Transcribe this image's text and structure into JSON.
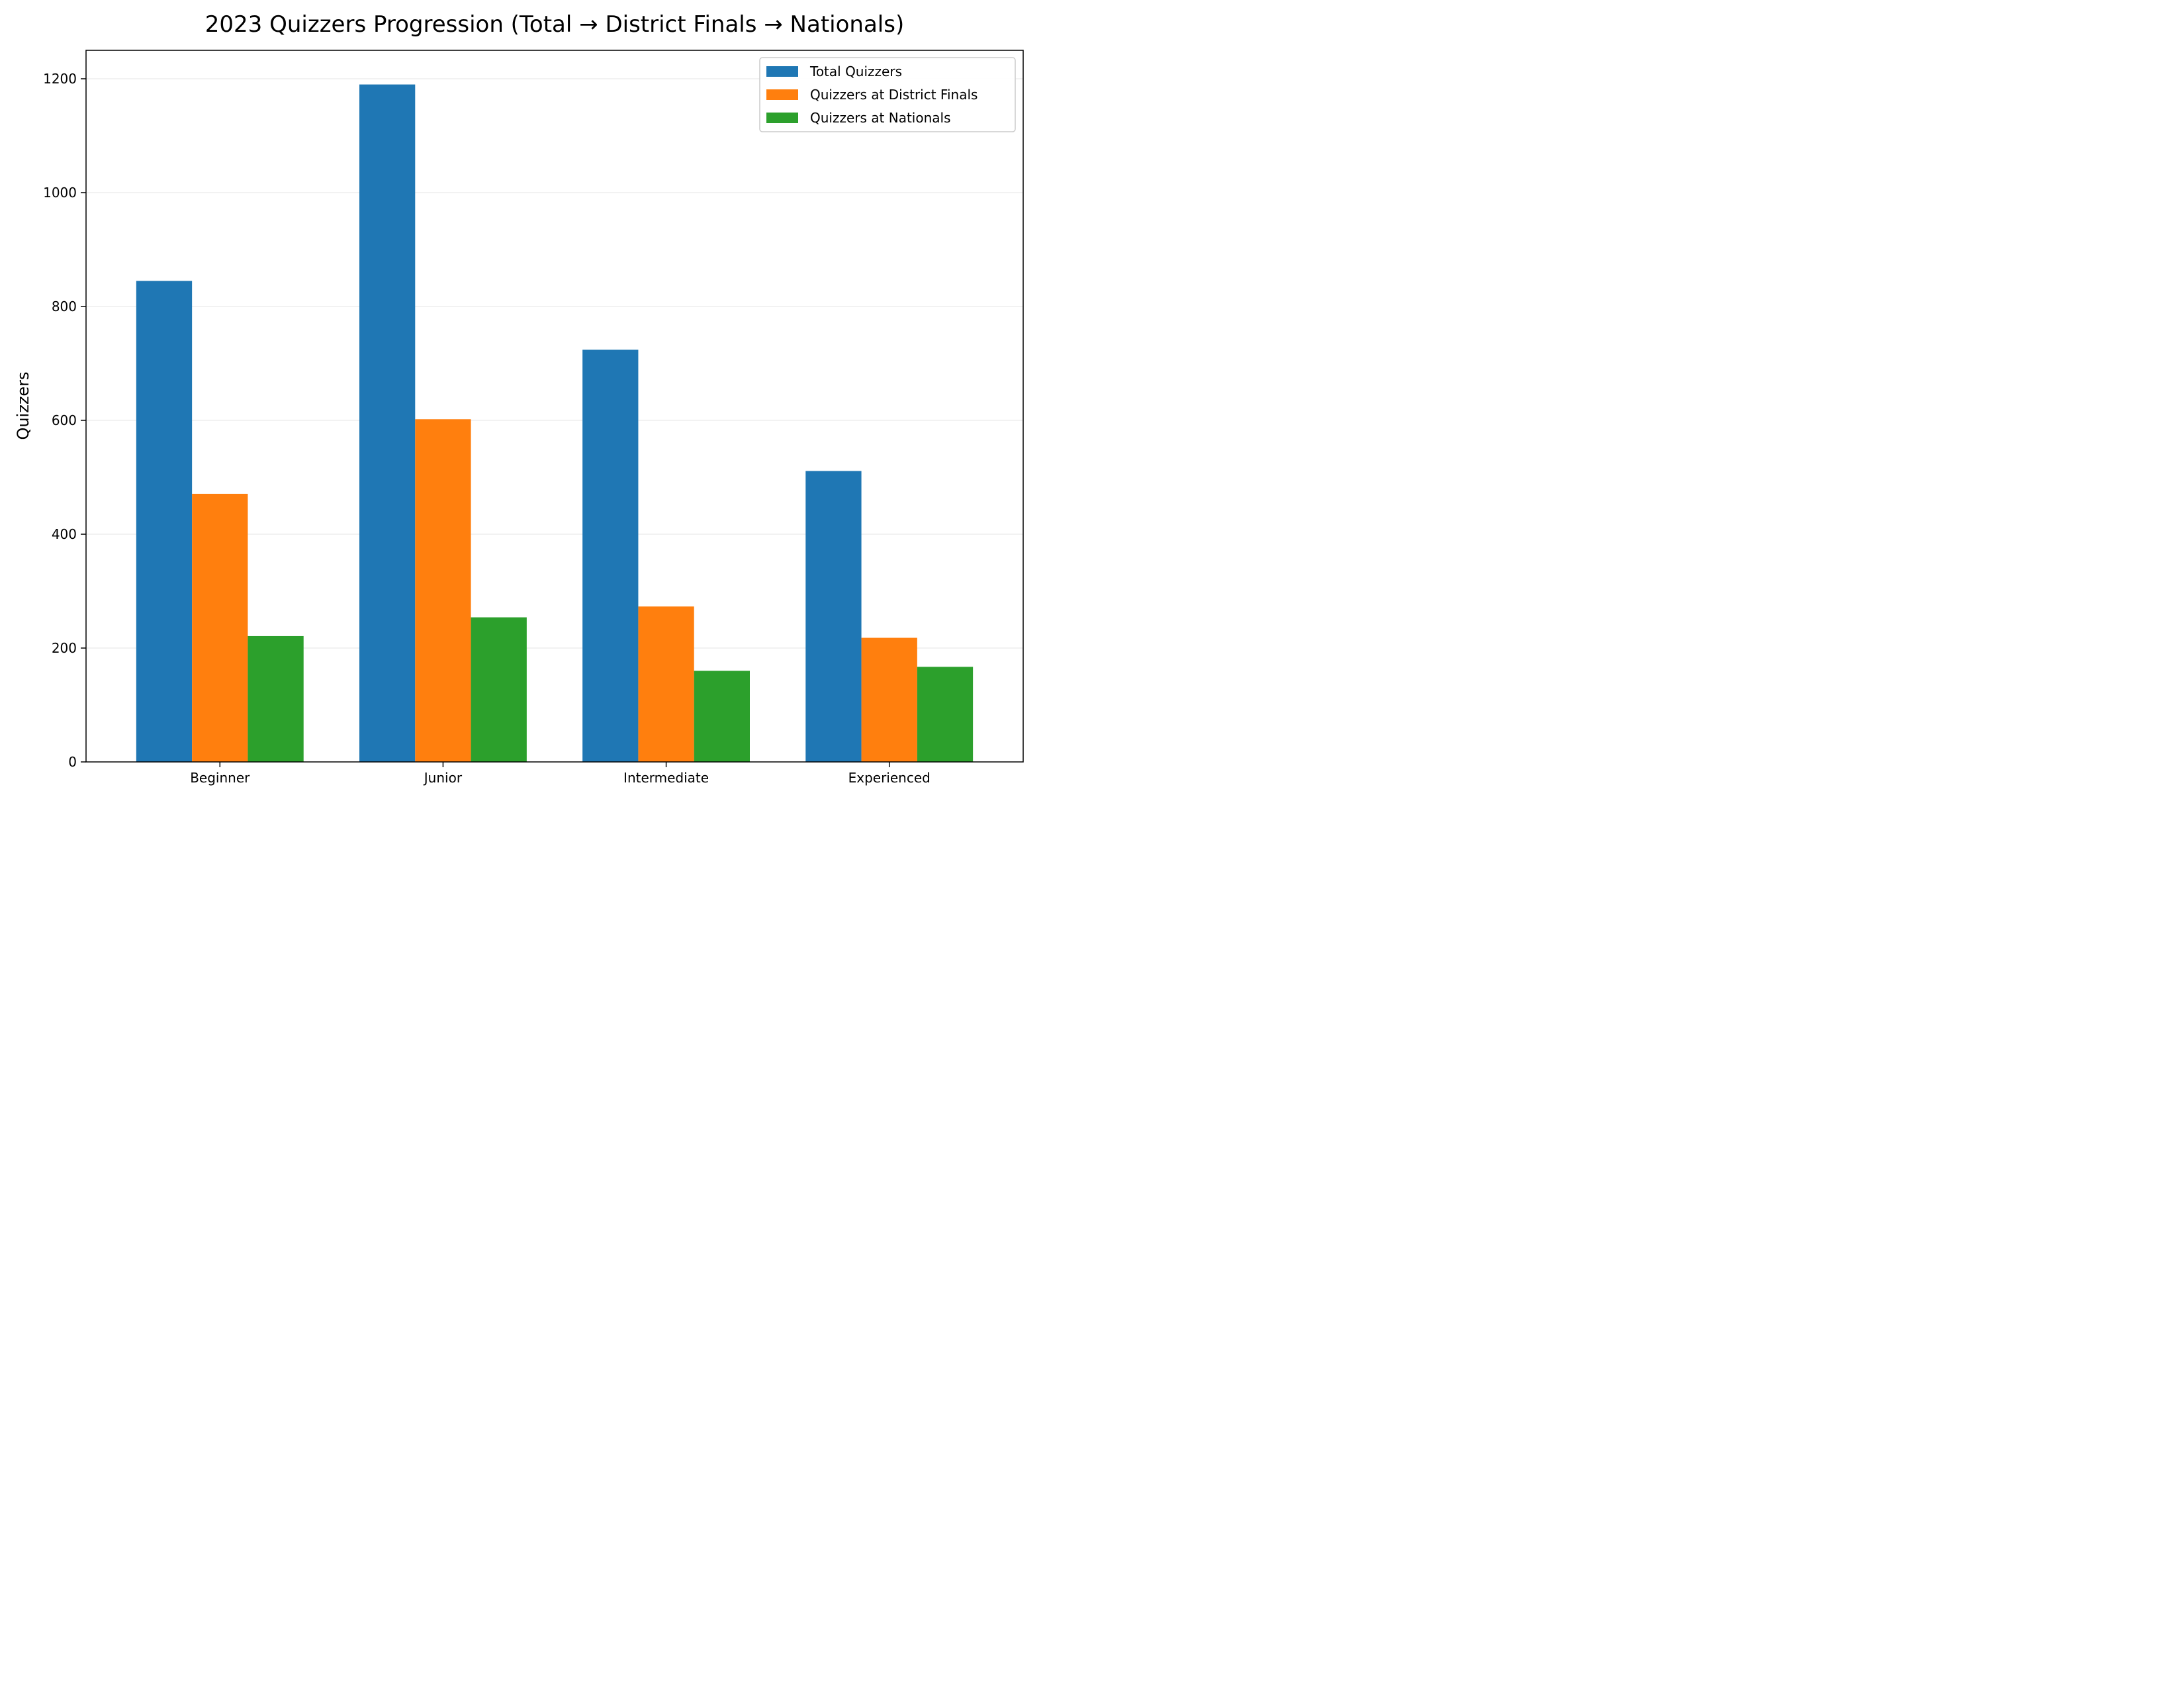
{
  "chart_data": {
    "type": "bar",
    "title": "2023 Quizzers Progression (Total → District Finals → Nationals)",
    "xlabel": "",
    "ylabel": "Quizzers",
    "categories": [
      "Beginner",
      "Junior",
      "Intermediate",
      "Experienced"
    ],
    "series": [
      {
        "name": "Total Quizzers",
        "color": "#1f77b4",
        "values": [
          845,
          1190,
          724,
          511
        ]
      },
      {
        "name": "Quizzers at District Finals",
        "color": "#ff7f0e",
        "values": [
          471,
          602,
          273,
          218
        ]
      },
      {
        "name": "Quizzers at Nationals",
        "color": "#2ca02c",
        "values": [
          221,
          254,
          160,
          167
        ]
      }
    ],
    "ylim": [
      0,
      1250
    ],
    "yticks": [
      0,
      200,
      400,
      600,
      800,
      1000,
      1200
    ],
    "grid": "y",
    "legend_position": "top-right"
  }
}
